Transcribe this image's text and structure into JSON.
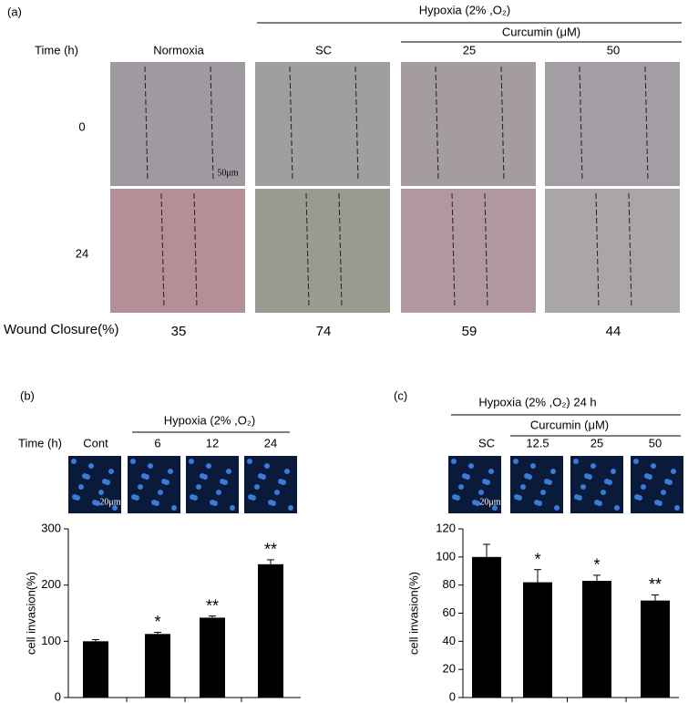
{
  "panel_a": {
    "label": "(a)",
    "header": "Hypoxia (2% ,O₂)",
    "subheader": "Curcumin (μM)",
    "time_label": "Time (h)",
    "columns": [
      "Normoxia",
      "SC",
      "25",
      "50"
    ],
    "times": [
      "0",
      "24"
    ],
    "scale_bar": "50μm",
    "closure_label": "Wound Closure(%)",
    "closure_values": [
      35,
      74,
      59,
      44
    ]
  },
  "chart_data": [
    {
      "type": "bar",
      "label": "(b)",
      "header": "Hypoxia (2% ,O₂)",
      "time_label": "Time (h)",
      "scale_bar": "20μm",
      "categories": [
        "Cont",
        "6",
        "12",
        "24"
      ],
      "values": [
        100,
        113,
        142,
        237
      ],
      "errors": [
        3,
        3,
        3,
        8
      ],
      "significance": [
        null,
        "*",
        "**",
        "**"
      ],
      "ylabel": "cell invasion(%)",
      "color": "#000000",
      "ylim": [
        0,
        300
      ],
      "yticks": [
        0,
        100,
        200,
        300
      ]
    },
    {
      "type": "bar",
      "label": "(c)",
      "header": "Hypoxia (2% ,O₂) 24 h",
      "subheader": "Curcumin (μM)",
      "scale_bar": "20μm",
      "categories": [
        "SC",
        "12.5",
        "25",
        "50"
      ],
      "values": [
        100,
        82,
        83,
        69
      ],
      "errors": [
        9,
        9,
        4,
        4
      ],
      "significance": [
        null,
        "*",
        "*",
        "**"
      ],
      "ylabel": "cell invasion(%)",
      "color": "#000000",
      "ylim": [
        0,
        120
      ],
      "yticks": [
        0,
        20,
        40,
        60,
        80,
        100,
        120
      ]
    }
  ]
}
